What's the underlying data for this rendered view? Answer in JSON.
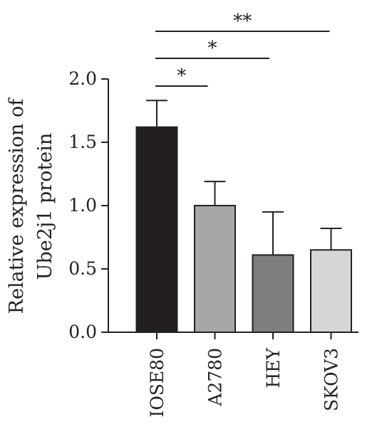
{
  "chart_data": {
    "type": "bar",
    "title": "",
    "xlabel": "",
    "ylabel_lines": [
      "Relative expression of",
      "Ube2j1 protein"
    ],
    "categories": [
      "IOSE80",
      "A2780",
      "HEY",
      "SKOV3"
    ],
    "values": [
      1.62,
      1.0,
      0.61,
      0.65
    ],
    "errors": [
      0.21,
      0.19,
      0.34,
      0.17
    ],
    "bar_colors": [
      "#231f20",
      "#a7a7aa",
      "#7c7f7d",
      "#d6d6d6"
    ],
    "ylim": [
      0,
      2.0
    ],
    "yticks": [
      "0.0",
      "0.5",
      "1.0",
      "1.5",
      "2.0"
    ],
    "grid": false,
    "legend": "none",
    "significance": [
      {
        "from": "IOSE80",
        "to": "A2780",
        "label": "*"
      },
      {
        "from": "IOSE80",
        "to": "HEY",
        "label": "*"
      },
      {
        "from": "IOSE80",
        "to": "SKOV3",
        "label": "**"
      }
    ]
  }
}
